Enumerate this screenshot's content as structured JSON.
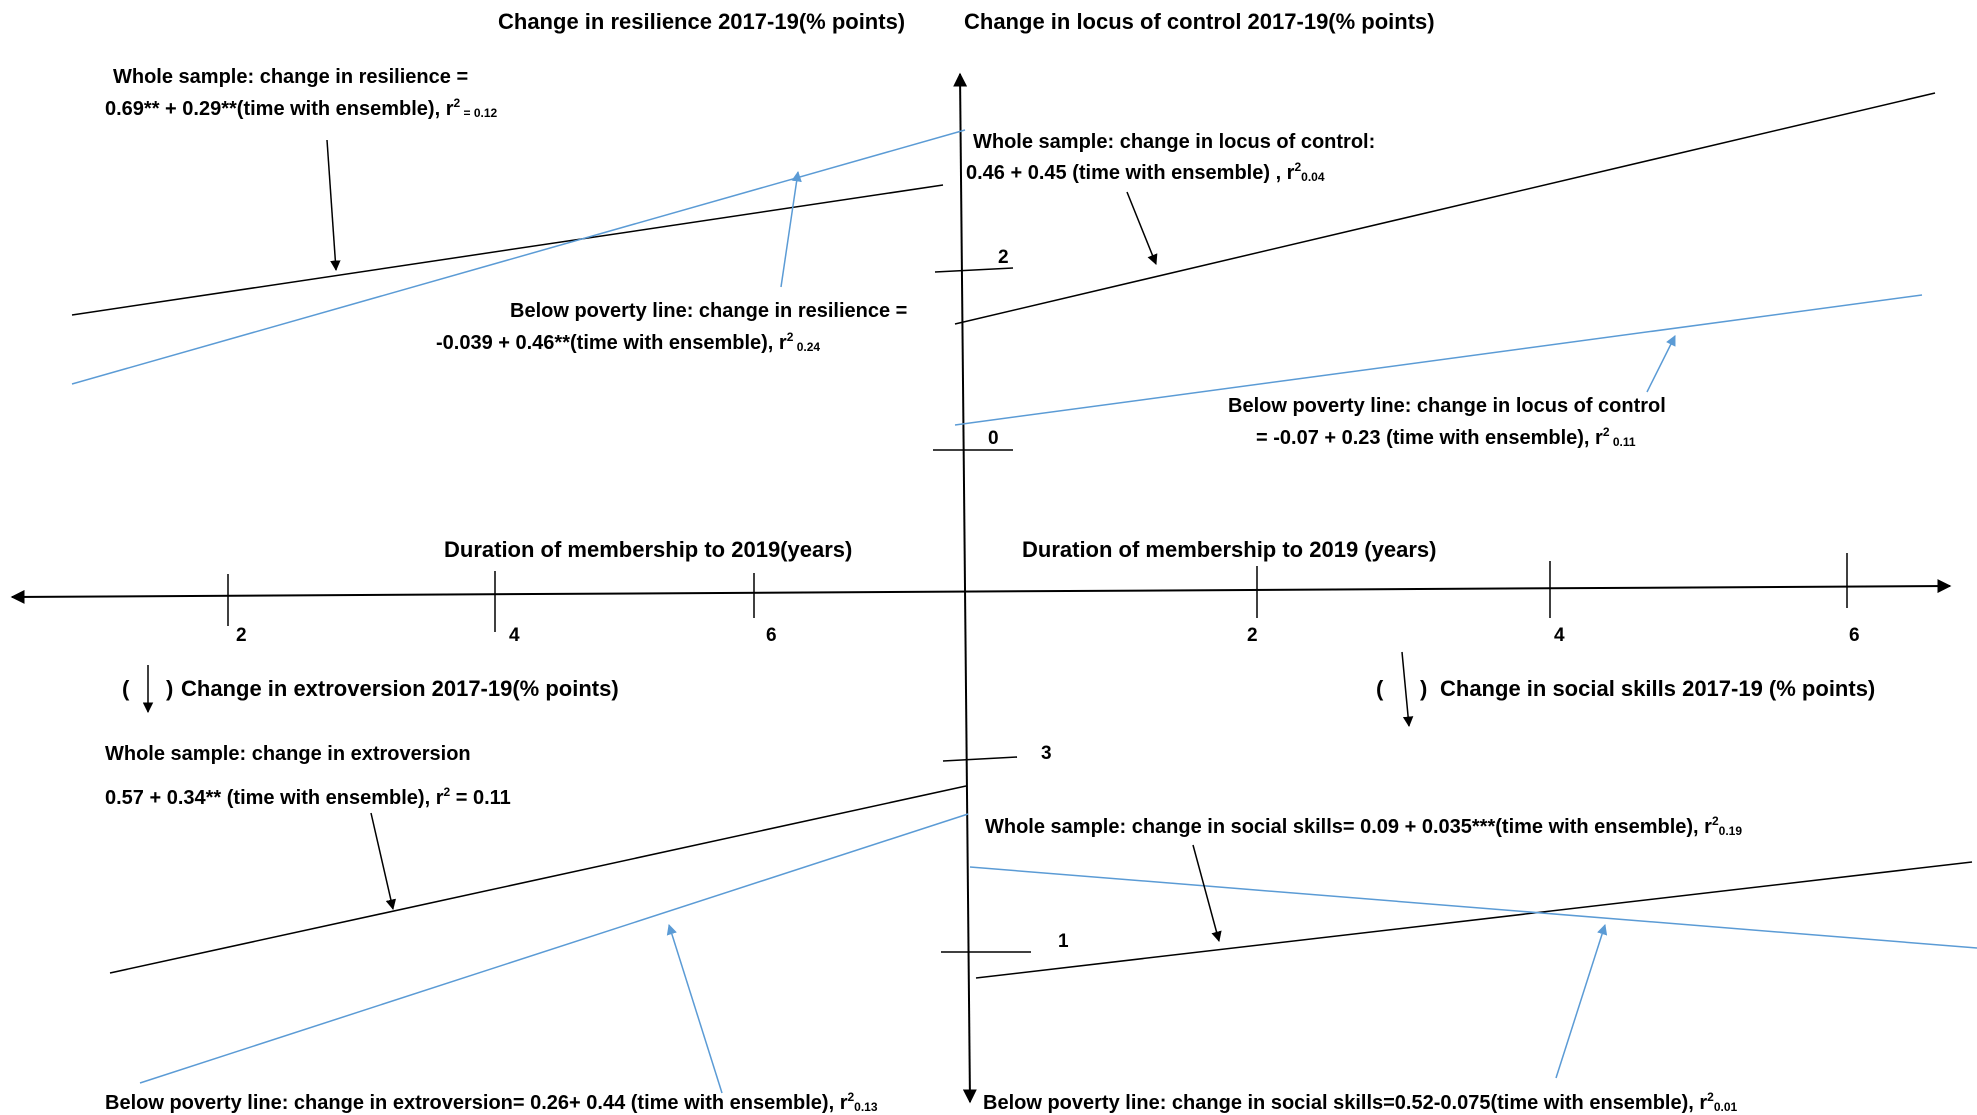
{
  "colors": {
    "whole_sample": "#000000",
    "below_poverty": "#5b9bd5",
    "axis": "#000000",
    "background": "#ffffff"
  },
  "chart_data": [
    {
      "type": "line",
      "panel": "top-left",
      "title": "Change in resilience 2017-19(% points)",
      "xlabel": "Duration of membership to 2019(years)",
      "x_direction": "right-to-left",
      "x_ticks": [
        "2",
        "4",
        "6"
      ],
      "y_ticks": [
        "2",
        "0"
      ],
      "series": [
        {
          "legend_style": "black",
          "annotation": [
            "Whole sample: change in resilience =",
            "0.69** + 0.29**(time with ensemble), r",
            "2",
            " = 0.12"
          ],
          "intercept": 0.69,
          "slope": 0.29
        },
        {
          "legend_style": "blue",
          "annotation": [
            "Below poverty line: change in resilience =",
            "-0.039 + 0.46**(time with ensemble), r",
            "2",
            " 0.24"
          ],
          "intercept": -0.039,
          "slope": 0.46
        }
      ]
    },
    {
      "type": "line",
      "panel": "top-right",
      "title": "Change in locus of control 2017-19(% points)",
      "xlabel": "Duration of membership to 2019 (years)",
      "x_ticks": [
        "2",
        "4",
        "6"
      ],
      "y_ticks": [
        "2",
        "0"
      ],
      "series": [
        {
          "legend_style": "black",
          "annotation": [
            "Whole sample: change in locus of control:",
            "0.46 + 0.45 (time with ensemble) , r",
            "2",
            "0.04"
          ],
          "intercept": 0.46,
          "slope": 0.45
        },
        {
          "legend_style": "blue",
          "annotation": [
            "Below poverty line: change in locus of control",
            "= -0.07 + 0.23 (time with ensemble), r",
            "2",
            "  0.11"
          ],
          "intercept": -0.07,
          "slope": 0.23
        }
      ]
    },
    {
      "type": "line",
      "panel": "bottom-left",
      "title": "Change in extroversion 2017-19(% points)",
      "title_prefix": "(",
      "title_suffix": ")",
      "x_direction": "right-to-left",
      "y_direction": "downward",
      "y_ticks": [
        "3",
        "1"
      ],
      "series": [
        {
          "legend_style": "black",
          "annotation": [
            "Whole sample: change in extroversion",
            "0.57 + 0.34** (time with ensemble), r",
            "2",
            " = 0.11"
          ],
          "intercept": 0.57,
          "slope": 0.34
        },
        {
          "legend_style": "blue",
          "annotation": [
            "Below poverty line: change in extroversion=  0.26+ 0.44 (time with ensemble), r",
            "2",
            "0.13"
          ],
          "intercept": 0.26,
          "slope": 0.44
        }
      ]
    },
    {
      "type": "line",
      "panel": "bottom-right",
      "title": "Change in social skills 2017-19 (% points)",
      "title_prefix": "(",
      "title_suffix": ")",
      "y_direction": "downward",
      "y_ticks": [
        "3",
        "1"
      ],
      "series": [
        {
          "legend_style": "black",
          "annotation": [
            "Whole sample: change in social skills= 0.09 + 0.035***(time with ensemble), r",
            "2",
            "0.19"
          ],
          "intercept": 0.09,
          "slope": 0.035
        },
        {
          "legend_style": "blue",
          "annotation": [
            "Below poverty line: change in social skills=0.52-0.075(time with ensemble), r",
            "2",
            "0.01"
          ],
          "intercept": 0.52,
          "slope": -0.075
        }
      ]
    }
  ]
}
